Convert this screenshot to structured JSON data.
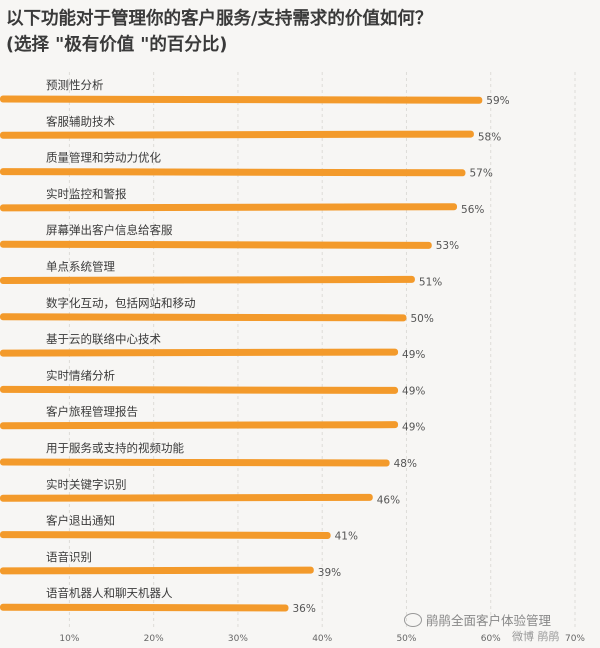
{
  "chart_data": {
    "type": "bar",
    "orientation": "horizontal",
    "title": "以下功能对于管理你的客户服务/支持需求的价值如何？",
    "subtitle": "(选择 \"极有价值 \"的百分比)",
    "categories": [
      "预测性分析",
      "客服辅助技术",
      "质量管理和劳动力优化",
      "实时监控和警报",
      "屏幕弹出客户信息给客服",
      "单点系统管理",
      "数字化互动，包括网站和移动",
      "基于云的联络中心技术",
      "实时情绪分析",
      "客户旅程管理报告",
      "用于服务或支持的视频功能",
      "实时关键字识别",
      "客户退出通知",
      "语音识别",
      "语音机器人和聊天机器人"
    ],
    "values": [
      59,
      58,
      57,
      56,
      53,
      51,
      50,
      49,
      49,
      49,
      48,
      46,
      41,
      39,
      36
    ],
    "value_labels": [
      "59%",
      "58%",
      "57%",
      "56%",
      "53%",
      "51%",
      "50%",
      "49%",
      "49%",
      "49%",
      "48%",
      "46%",
      "41%",
      "39%",
      "36%"
    ],
    "xlim": [
      2,
      70
    ],
    "xticks": [
      "10%",
      "20%",
      "30%",
      "40%",
      "50%",
      "60%",
      "70%"
    ],
    "xtick_values": [
      10,
      20,
      30,
      40,
      50,
      60,
      70
    ],
    "grid": true,
    "bar_color": "#f39a2b"
  },
  "watermark": {
    "text": "鹃鹃全面客户体验管理",
    "icon": "wechat-icon",
    "secondary": "微博 鹃鹃"
  }
}
